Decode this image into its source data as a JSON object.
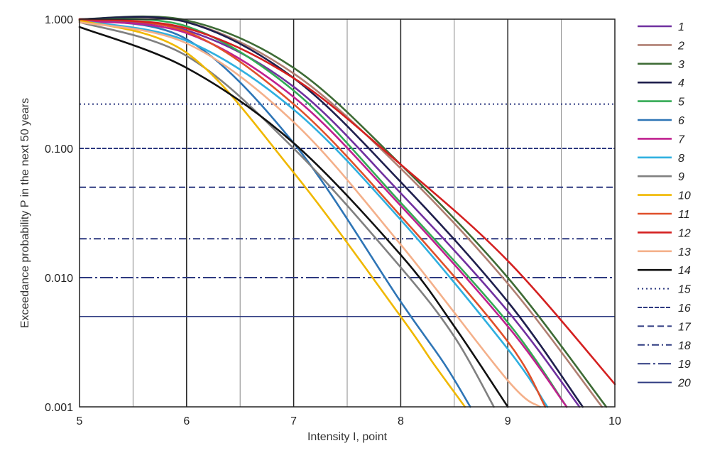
{
  "chart_data": {
    "type": "line",
    "xlabel": "Intensity I, point",
    "ylabel": "Exceedance probability P in the next 50 years",
    "xlim": [
      5,
      10
    ],
    "ylim": [
      0.001,
      1.0
    ],
    "yscale": "log",
    "x_ticks": [
      "5",
      "6",
      "7",
      "8",
      "9",
      "10"
    ],
    "y_ticks": [
      {
        "value": 1.0,
        "label": "1.000"
      },
      {
        "value": 0.1,
        "label": "0.100"
      },
      {
        "value": 0.01,
        "label": "0.010"
      },
      {
        "value": 0.001,
        "label": "0.001"
      }
    ],
    "grid": true,
    "legend_position": "right",
    "series": [
      {
        "name": "1",
        "color": "#7030a0",
        "points": [
          [
            5,
            0.98
          ],
          [
            6,
            0.82
          ],
          [
            7,
            0.3
          ],
          [
            8,
            0.045
          ],
          [
            9,
            0.0055
          ],
          [
            9.67,
            0.001
          ]
        ]
      },
      {
        "name": "2",
        "color": "#b07f72",
        "points": [
          [
            5,
            1.0
          ],
          [
            6,
            0.95
          ],
          [
            7,
            0.38
          ],
          [
            8,
            0.07
          ],
          [
            9,
            0.009
          ],
          [
            9.88,
            0.001
          ]
        ]
      },
      {
        "name": "3",
        "color": "#3d6b35",
        "points": [
          [
            5,
            1.0
          ],
          [
            6,
            0.98
          ],
          [
            7,
            0.42
          ],
          [
            8,
            0.075
          ],
          [
            9,
            0.01
          ],
          [
            9.92,
            0.001
          ]
        ]
      },
      {
        "name": "4",
        "color": "#1f1f4d",
        "points": [
          [
            5,
            1.0
          ],
          [
            6,
            0.95
          ],
          [
            7,
            0.35
          ],
          [
            8,
            0.055
          ],
          [
            9,
            0.0065
          ],
          [
            9.7,
            0.001
          ]
        ]
      },
      {
        "name": "5",
        "color": "#33aa55",
        "points": [
          [
            5,
            0.99
          ],
          [
            6,
            0.88
          ],
          [
            7,
            0.28
          ],
          [
            8,
            0.038
          ],
          [
            9,
            0.0045
          ],
          [
            9.55,
            0.001
          ]
        ]
      },
      {
        "name": "6",
        "color": "#2e75b6",
        "points": [
          [
            5,
            0.99
          ],
          [
            6,
            0.7
          ],
          [
            7,
            0.11
          ],
          [
            8,
            0.0065
          ],
          [
            8.4,
            0.0022
          ],
          [
            8.65,
            0.001
          ]
        ]
      },
      {
        "name": "7",
        "color": "#c0208f",
        "points": [
          [
            5,
            0.97
          ],
          [
            6,
            0.78
          ],
          [
            7,
            0.25
          ],
          [
            8,
            0.036
          ],
          [
            9,
            0.0042
          ],
          [
            9.55,
            0.001
          ]
        ]
      },
      {
        "name": "8",
        "color": "#30b0e0",
        "points": [
          [
            5,
            0.97
          ],
          [
            6,
            0.68
          ],
          [
            7,
            0.2
          ],
          [
            8,
            0.028
          ],
          [
            9,
            0.0028
          ],
          [
            9.37,
            0.001
          ]
        ]
      },
      {
        "name": "9",
        "color": "#808080",
        "points": [
          [
            5,
            0.95
          ],
          [
            6,
            0.52
          ],
          [
            7,
            0.1
          ],
          [
            8,
            0.012
          ],
          [
            8.5,
            0.0035
          ],
          [
            8.87,
            0.001
          ]
        ]
      },
      {
        "name": "10",
        "color": "#f0b800",
        "points": [
          [
            5,
            0.98
          ],
          [
            6,
            0.55
          ],
          [
            7,
            0.065
          ],
          [
            8,
            0.005
          ],
          [
            8.3,
            0.0022
          ],
          [
            8.6,
            0.001
          ]
        ]
      },
      {
        "name": "11",
        "color": "#e0502a",
        "points": [
          [
            5,
            1.0
          ],
          [
            6,
            0.8
          ],
          [
            7,
            0.22
          ],
          [
            8,
            0.03
          ],
          [
            9,
            0.0032
          ],
          [
            9.35,
            0.001
          ]
        ]
      },
      {
        "name": "12",
        "color": "#d42020",
        "points": [
          [
            5,
            1.0
          ],
          [
            6,
            0.85
          ],
          [
            7,
            0.35
          ],
          [
            8,
            0.075
          ],
          [
            9,
            0.0135
          ],
          [
            10,
            0.0015
          ]
        ]
      },
      {
        "name": "13",
        "color": "#f4b08a",
        "points": [
          [
            5,
            0.95
          ],
          [
            6,
            0.65
          ],
          [
            7,
            0.16
          ],
          [
            8,
            0.018
          ],
          [
            9,
            0.0016
          ],
          [
            9.3,
            0.001
          ]
        ]
      },
      {
        "name": "14",
        "color": "#111111",
        "points": [
          [
            5,
            0.87
          ],
          [
            6,
            0.42
          ],
          [
            7,
            0.11
          ],
          [
            8,
            0.015
          ],
          [
            8.5,
            0.0042
          ],
          [
            9.0,
            0.001
          ]
        ]
      }
    ],
    "reference_lines": [
      {
        "name": "15",
        "y": 0.22,
        "color": "#2e3a80",
        "dash": "2 4"
      },
      {
        "name": "16",
        "y": 0.1,
        "color": "#2e3a80",
        "dash": "6 2"
      },
      {
        "name": "17",
        "y": 0.05,
        "color": "#2e3a80",
        "dash": "9 5"
      },
      {
        "name": "18",
        "y": 0.02,
        "color": "#2e3a80",
        "dash": "10 4 2 4"
      },
      {
        "name": "19",
        "y": 0.01,
        "color": "#2e3a80",
        "dash": "18 4 3 4"
      },
      {
        "name": "20",
        "y": 0.005,
        "color": "#2e3a80",
        "dash": ""
      }
    ]
  }
}
